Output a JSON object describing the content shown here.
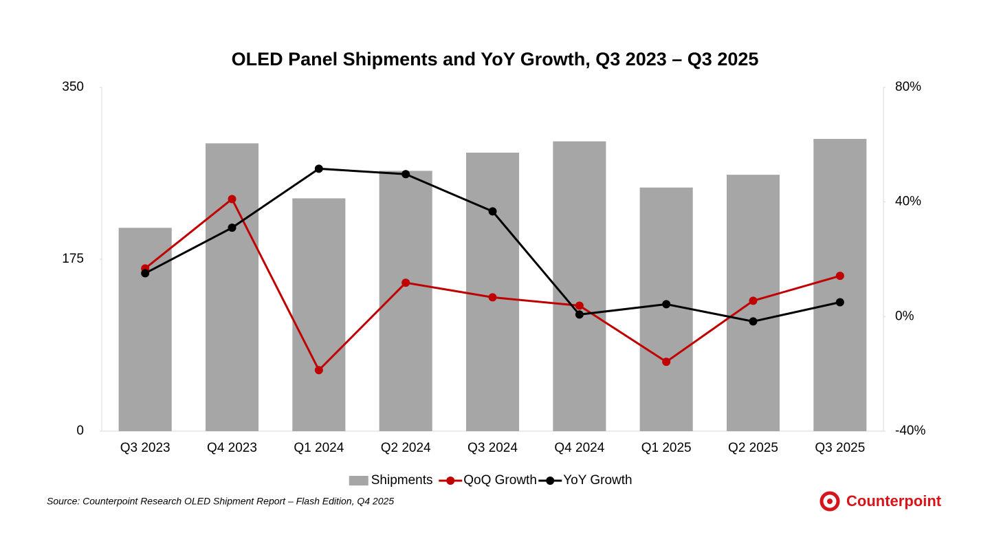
{
  "chart_data": {
    "type": "combo",
    "title": "OLED Panel Shipments and YoY Growth, Q3 2023 – Q3 2025",
    "categories": [
      "Q3 2023",
      "Q4 2023",
      "Q1 2024",
      "Q2 2024",
      "Q3 2024",
      "Q4 2024",
      "Q1 2025",
      "Q2 2025",
      "Q3 2025"
    ],
    "series": [
      {
        "name": "Shipments",
        "type": "bar",
        "axis": "y",
        "color": "#a6a6a6",
        "values": [
          207,
          293,
          237,
          265,
          283.5,
          295,
          248,
          261,
          297.5
        ]
      },
      {
        "name": "QoQ Growth",
        "type": "line",
        "axis": "y2",
        "color": "#c00000",
        "values": [
          16.8,
          41,
          -18.7,
          11.8,
          6.7,
          3.8,
          -15.8,
          5.5,
          14.2
        ]
      },
      {
        "name": "YoY Growth",
        "type": "line",
        "axis": "y2",
        "color": "#000000",
        "values": [
          15.1,
          31,
          51.6,
          49.7,
          36.7,
          0.7,
          4.3,
          -1.7,
          5
        ]
      }
    ],
    "ylim": [
      0,
      350
    ],
    "yticks": [
      0,
      175,
      350
    ],
    "y2lim": [
      -40,
      80
    ],
    "y2ticks": [
      {
        "value": -40,
        "label": "-40%"
      },
      {
        "value": 0,
        "label": "0%"
      },
      {
        "value": 40,
        "label": "40%"
      },
      {
        "value": 80,
        "label": "80%"
      }
    ],
    "grid": false,
    "legend": "bottom",
    "source": "Source: Counterpoint Research  OLED Shipment Report – Flash Edition, Q4 2025",
    "logo": "Counterpoint"
  }
}
